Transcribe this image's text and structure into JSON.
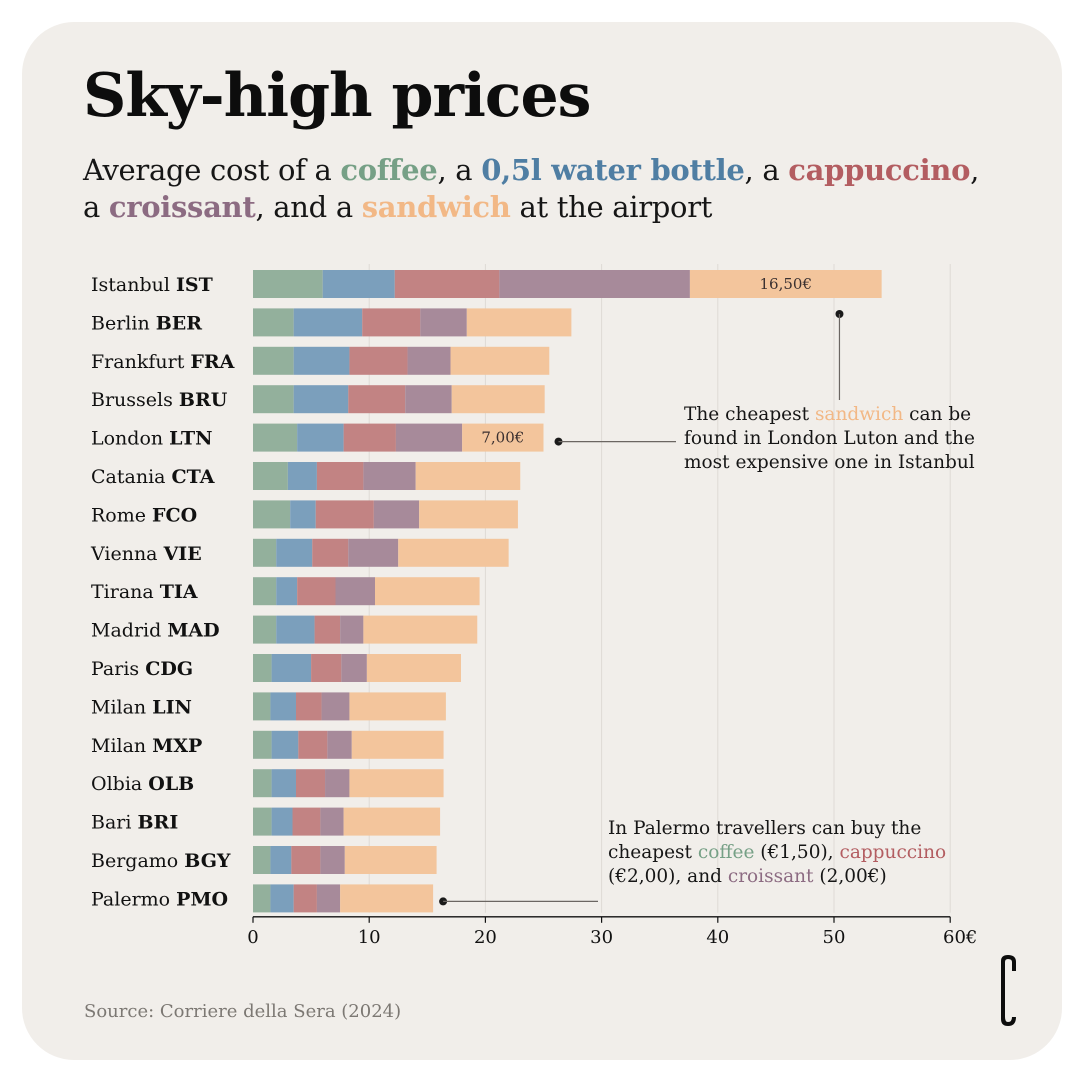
{
  "header": {
    "title": "Sky-high prices",
    "subtitle_parts": {
      "p1": "Average cost of a ",
      "coffee": "coffee",
      "p2": ", a ",
      "water": "0,5l water bottle",
      "p3": ", a ",
      "cappuccino": "cappuccino",
      "p4": ",",
      "p5": "a ",
      "croissant": "croissant",
      "p6": ", and a ",
      "sandwich": "sandwich",
      "p7": " at the airport"
    }
  },
  "colors": {
    "coffee": "#93b09c",
    "water": "#7b9fbc",
    "cappuccino": "#c28383",
    "croissant": "#a78a9a",
    "sandwich": "#f3c59c",
    "background": "#f1eeea",
    "grid": "#dedad5"
  },
  "chart_data": {
    "type": "bar",
    "orientation": "horizontal",
    "stacked": true,
    "title": "Sky-high prices",
    "subtitle": "Average cost of a coffee, a 0,5l water bottle, a cappuccino, a croissant, and a sandwich at the airport",
    "xlabel": "",
    "ylabel": "",
    "xlim": [
      0,
      60
    ],
    "x_ticks": [
      0,
      10,
      20,
      30,
      40,
      50,
      60
    ],
    "x_tick_labels": [
      "0",
      "10",
      "20",
      "30",
      "40",
      "50",
      "60€"
    ],
    "grid": "vertical",
    "legend": "inline-in-subtitle",
    "categories": [
      {
        "city": "Istanbul",
        "code": "IST"
      },
      {
        "city": "Berlin",
        "code": "BER"
      },
      {
        "city": "Frankfurt",
        "code": "FRA"
      },
      {
        "city": "Brussels",
        "code": "BRU"
      },
      {
        "city": "London",
        "code": "LTN"
      },
      {
        "city": "Catania",
        "code": "CTA"
      },
      {
        "city": "Rome",
        "code": "FCO"
      },
      {
        "city": "Vienna",
        "code": "VIE"
      },
      {
        "city": "Tirana",
        "code": "TIA"
      },
      {
        "city": "Madrid",
        "code": "MAD"
      },
      {
        "city": "Paris",
        "code": "CDG"
      },
      {
        "city": "Milan",
        "code": "LIN"
      },
      {
        "city": "Milan",
        "code": "MXP"
      },
      {
        "city": "Olbia",
        "code": "OLB"
      },
      {
        "city": "Bari",
        "code": "BRI"
      },
      {
        "city": "Bergamo",
        "code": "BGY"
      },
      {
        "city": "Palermo",
        "code": "PMO"
      }
    ],
    "series": [
      {
        "name": "coffee",
        "values": [
          6.0,
          3.5,
          3.5,
          3.5,
          3.8,
          3.0,
          3.2,
          2.0,
          2.0,
          2.0,
          1.6,
          1.5,
          1.6,
          1.6,
          1.6,
          1.5,
          1.5
        ]
      },
      {
        "name": "0,5l water bottle",
        "values": [
          6.2,
          5.9,
          4.8,
          4.7,
          4.0,
          2.5,
          2.2,
          3.1,
          1.8,
          3.3,
          3.4,
          2.2,
          2.3,
          2.1,
          1.8,
          1.8,
          2.0
        ]
      },
      {
        "name": "cappuccino",
        "values": [
          9.0,
          5.0,
          5.0,
          4.9,
          4.5,
          4.0,
          5.0,
          3.1,
          3.3,
          2.2,
          2.6,
          2.2,
          2.5,
          2.5,
          2.4,
          2.5,
          2.0
        ]
      },
      {
        "name": "croissant",
        "values": [
          16.4,
          4.0,
          3.7,
          4.0,
          5.7,
          4.5,
          3.9,
          4.3,
          3.4,
          2.0,
          2.2,
          2.4,
          2.1,
          2.1,
          2.0,
          2.1,
          2.0
        ]
      },
      {
        "name": "sandwich",
        "values": [
          16.5,
          9.0,
          8.5,
          8.0,
          7.0,
          9.0,
          8.5,
          9.5,
          9.0,
          9.8,
          8.1,
          8.3,
          7.9,
          8.1,
          8.3,
          7.9,
          8.0
        ]
      }
    ],
    "data_labels": [
      {
        "category": "IST",
        "series": "sandwich",
        "text": "16,50€"
      },
      {
        "category": "LTN",
        "series": "sandwich",
        "text": "7,00€"
      }
    ],
    "annotations": [
      {
        "target": "IST/LTN sandwich",
        "text": "The cheapest sandwich can be found in London Luton and the most expensive one in Istanbul"
      },
      {
        "target": "PMO",
        "text": "In Palermo travellers can buy the cheapest coffee (€1,50), cappuccino (€2,00), and croissant (2,00€)"
      }
    ]
  },
  "annotations": {
    "note1": {
      "a": "The cheapest ",
      "sandwich": "sandwich",
      "b": " can be found in London Luton and the most expensive one in Istanbul"
    },
    "note2": {
      "a": "In Palermo travellers can buy the cheapest ",
      "coffee": "coffee",
      "b": " (€1,50), ",
      "cappuccino": "cappuccino",
      "c": " (€2,00), and ",
      "croissant": "croissant",
      "d": " (2,00€)"
    }
  },
  "footer": {
    "source": "Source:  Corriere della Sera (2024)",
    "logo_icon": "publisher-logo-icon"
  }
}
